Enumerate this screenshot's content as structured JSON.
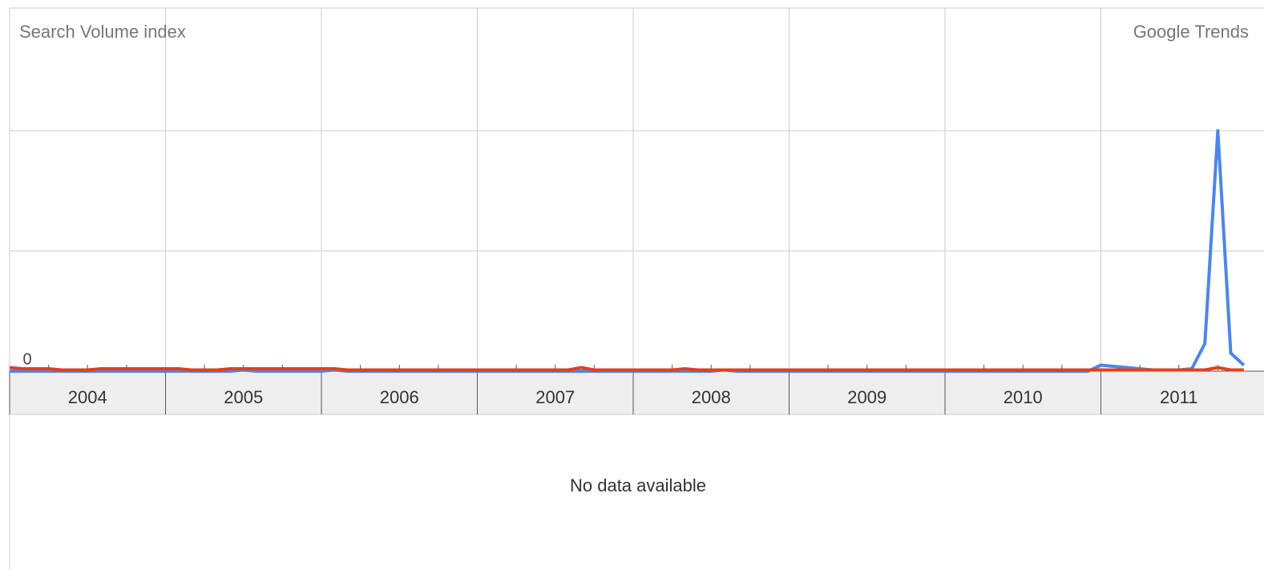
{
  "chart_data": {
    "type": "line",
    "title": "Search Volume index",
    "brand": "Google Trends",
    "note": "No data available",
    "x": [
      2004.0,
      2004.083,
      2004.167,
      2004.25,
      2004.333,
      2004.417,
      2004.5,
      2004.583,
      2004.667,
      2004.75,
      2004.833,
      2004.917,
      2005.0,
      2005.083,
      2005.167,
      2005.25,
      2005.333,
      2005.417,
      2005.5,
      2005.583,
      2005.667,
      2005.75,
      2005.833,
      2005.917,
      2006.0,
      2006.083,
      2006.167,
      2006.25,
      2006.333,
      2006.417,
      2006.5,
      2006.583,
      2006.667,
      2006.75,
      2006.833,
      2006.917,
      2007.0,
      2007.083,
      2007.167,
      2007.25,
      2007.333,
      2007.417,
      2007.5,
      2007.583,
      2007.667,
      2007.75,
      2007.833,
      2007.917,
      2008.0,
      2008.083,
      2008.167,
      2008.25,
      2008.333,
      2008.417,
      2008.5,
      2008.583,
      2008.667,
      2008.75,
      2008.833,
      2008.917,
      2009.0,
      2009.083,
      2009.167,
      2009.25,
      2009.333,
      2009.417,
      2009.5,
      2009.583,
      2009.667,
      2009.75,
      2009.833,
      2009.917,
      2010.0,
      2010.083,
      2010.167,
      2010.25,
      2010.333,
      2010.417,
      2010.5,
      2010.583,
      2010.667,
      2010.75,
      2010.833,
      2010.917,
      2011.0,
      2011.083,
      2011.167,
      2011.25,
      2011.333,
      2011.417,
      2011.5,
      2011.583,
      2011.667,
      2011.75,
      2011.833,
      2011.917
    ],
    "series": [
      {
        "color": "#4d86e6",
        "values": [
          0,
          0,
          0,
          0,
          0,
          0,
          0,
          0,
          0,
          0,
          0,
          0,
          0,
          0,
          0,
          0,
          0,
          0,
          0.01,
          0,
          0,
          0,
          0,
          0,
          0,
          0.01,
          0,
          0,
          0,
          0,
          0,
          0,
          0,
          0,
          0,
          0,
          0,
          0,
          0,
          0,
          0,
          0,
          0,
          0,
          0,
          0,
          0,
          0,
          0,
          0,
          0,
          0,
          0,
          0,
          0,
          0.01,
          0,
          0,
          0,
          0,
          0,
          0,
          0,
          0,
          0,
          0,
          0,
          0,
          0,
          0,
          0,
          0,
          0,
          0,
          0,
          0,
          0,
          0,
          0,
          0,
          0,
          0,
          0,
          0,
          0.05,
          0.04,
          0.03,
          0.02,
          0.01,
          0.01,
          0.01,
          0.02,
          0.23,
          2.0,
          0.15,
          0.05
        ]
      },
      {
        "color": "#e0401c",
        "values": [
          0.03,
          0.02,
          0.02,
          0.02,
          0.01,
          0.01,
          0.01,
          0.02,
          0.02,
          0.02,
          0.02,
          0.02,
          0.02,
          0.02,
          0.01,
          0.01,
          0.01,
          0.02,
          0.02,
          0.02,
          0.02,
          0.02,
          0.02,
          0.02,
          0.02,
          0.02,
          0.01,
          0.01,
          0.01,
          0.01,
          0.01,
          0.01,
          0.01,
          0.01,
          0.01,
          0.01,
          0.01,
          0.01,
          0.01,
          0.01,
          0.01,
          0.01,
          0.01,
          0.01,
          0.03,
          0.01,
          0.01,
          0.01,
          0.01,
          0.01,
          0.01,
          0.01,
          0.02,
          0.01,
          0.01,
          0.01,
          0.01,
          0.01,
          0.01,
          0.01,
          0.01,
          0.01,
          0.01,
          0.01,
          0.01,
          0.01,
          0.01,
          0.01,
          0.01,
          0.01,
          0.01,
          0.01,
          0.01,
          0.01,
          0.01,
          0.01,
          0.01,
          0.01,
          0.01,
          0.01,
          0.01,
          0.01,
          0.01,
          0.01,
          0.01,
          0.01,
          0.01,
          0.01,
          0.01,
          0.01,
          0.01,
          0.01,
          0.01,
          0.03,
          0.01,
          0.01
        ]
      }
    ],
    "xlim": [
      2004,
      2012
    ],
    "xticks": [
      2004,
      2005,
      2006,
      2007,
      2008,
      2009,
      2010,
      2011
    ],
    "ylim": [
      0,
      3
    ],
    "yticks": [
      0
    ],
    "grid": true
  }
}
